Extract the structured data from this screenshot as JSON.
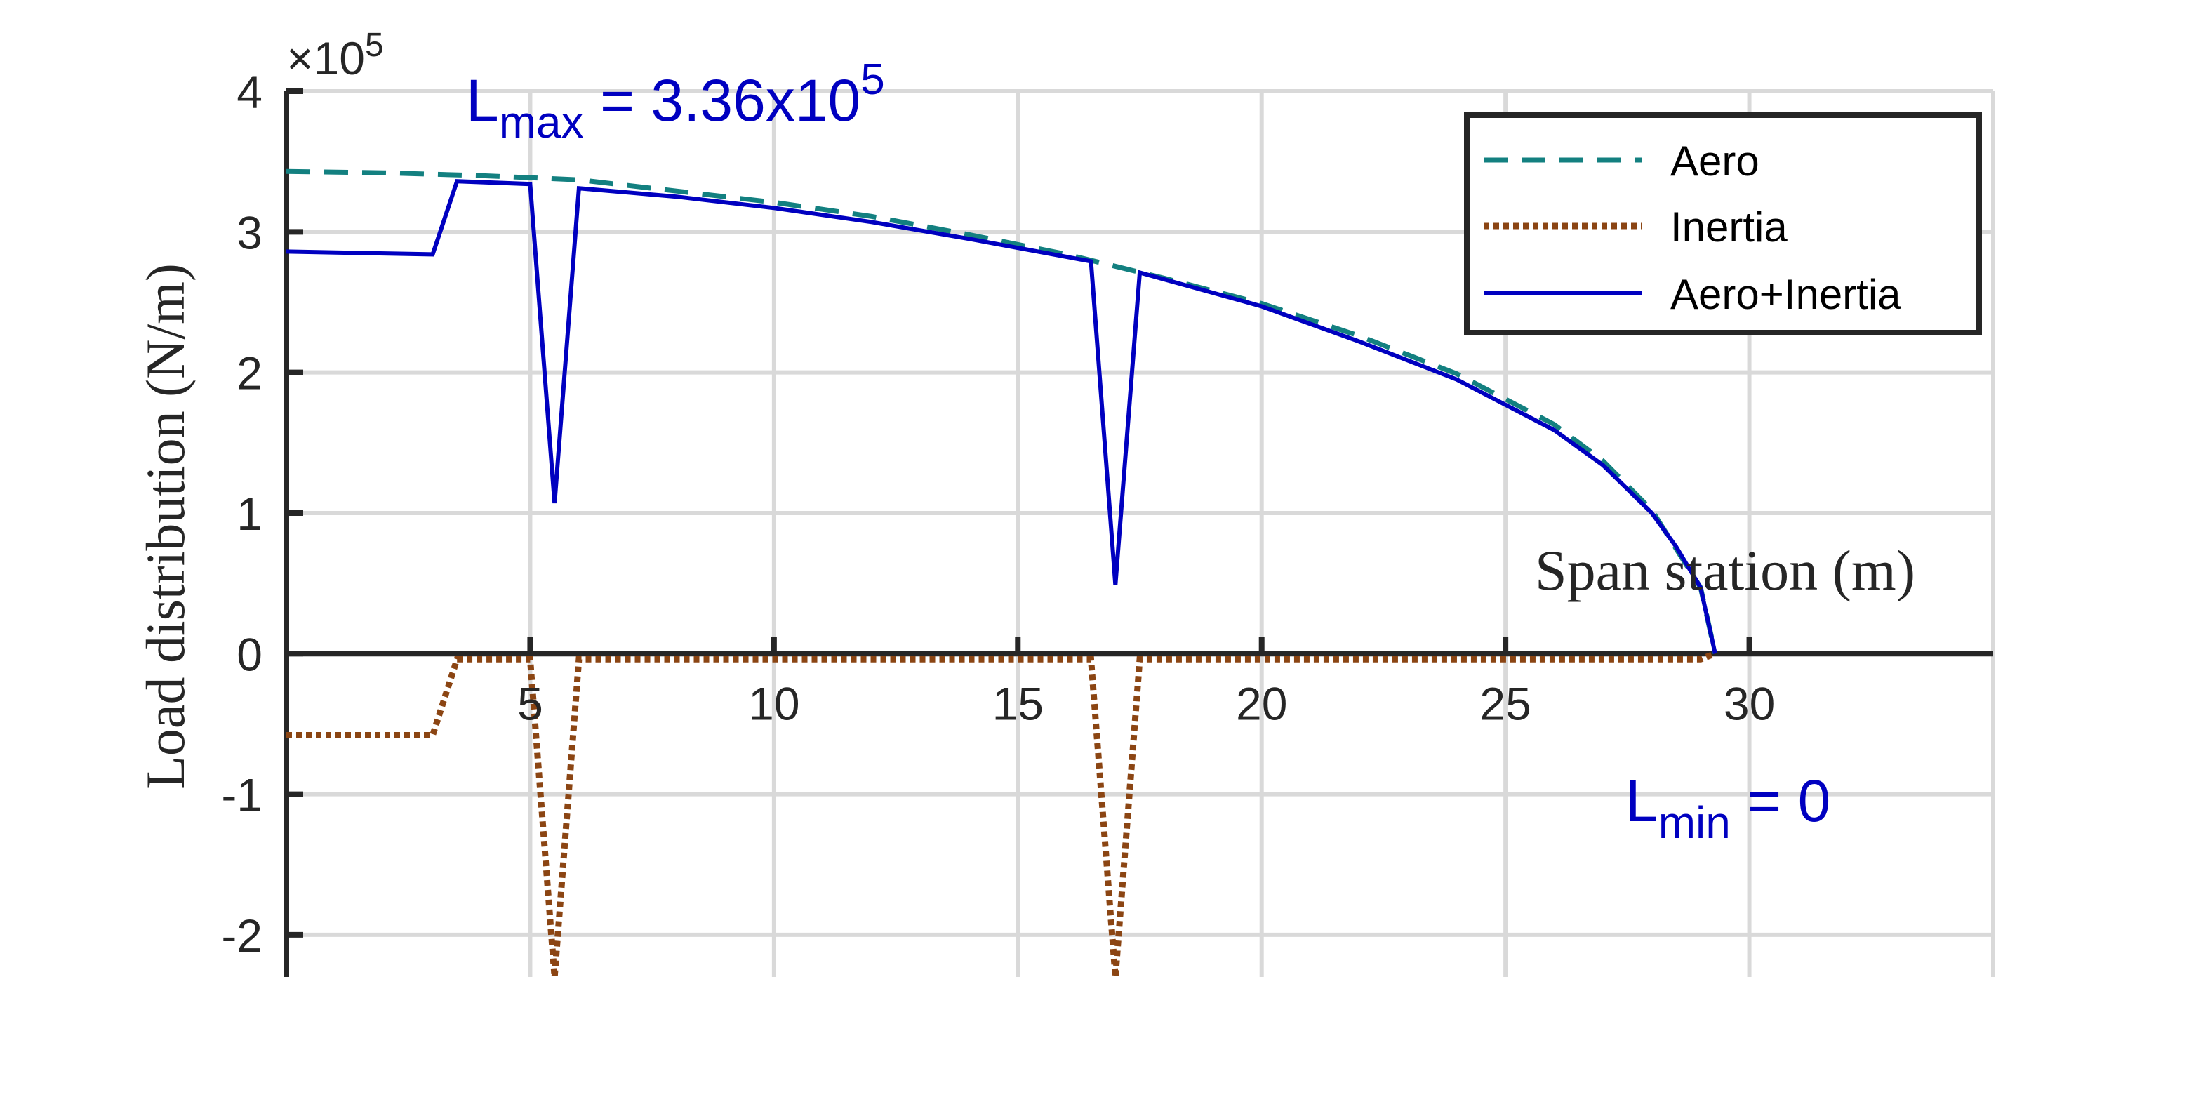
{
  "chart_data": {
    "type": "line",
    "title": "",
    "xlabel": "Span station (m)",
    "ylabel": "Load distribution (N/m)",
    "y_exponent_label": "×10",
    "y_exponent_power": "5",
    "xlim": [
      0,
      35
    ],
    "ylim": [
      -2.3,
      4
    ],
    "x_ticks": [
      5,
      10,
      15,
      20,
      25,
      30
    ],
    "x_tick_labels": [
      "5",
      "10",
      "15",
      "20",
      "25",
      "30"
    ],
    "y_ticks": [
      -2,
      -1,
      0,
      1,
      2,
      3,
      4
    ],
    "y_tick_labels": [
      "-2",
      "-1",
      "0",
      "1",
      "2",
      "3",
      "4"
    ],
    "grid": true,
    "legend_position": "top-right",
    "annotations": {
      "lmax_main": "L",
      "lmax_sub": "max",
      "lmax_value": " = 3.36x10",
      "lmax_sup": "5",
      "lmin_main": "L",
      "lmin_sub": "min",
      "lmin_value": " = 0"
    },
    "colors": {
      "aero": "#138080",
      "inertia": "#8b4513",
      "total": "#0000c0",
      "grid": "#d9d9d9",
      "axis": "#262626"
    },
    "series": [
      {
        "name": "Aero",
        "style": "dashed",
        "x": [
          0,
          2,
          4,
          6,
          8,
          10,
          12,
          14,
          16,
          18,
          20,
          22,
          24,
          26,
          27,
          28,
          29,
          29.3
        ],
        "y": [
          3.43,
          3.42,
          3.4,
          3.37,
          3.29,
          3.21,
          3.11,
          2.98,
          2.84,
          2.67,
          2.49,
          2.26,
          1.99,
          1.63,
          1.37,
          1.02,
          0.47,
          0
        ]
      },
      {
        "name": "Inertia",
        "style": "dotted",
        "x": [
          0,
          3.0,
          3.5,
          5.0,
          5.5,
          6.0,
          16.5,
          17.0,
          17.5,
          29.0,
          29.3
        ],
        "y": [
          -0.58,
          -0.58,
          -0.04,
          -0.04,
          -2.3,
          -0.04,
          -0.04,
          -2.3,
          -0.04,
          -0.04,
          0
        ]
      },
      {
        "name": "Aero+Inertia",
        "style": "solid",
        "x": [
          0,
          3.0,
          3.5,
          5.0,
          5.5,
          6.0,
          8,
          10,
          12,
          14,
          16.5,
          17.0,
          17.5,
          20,
          22,
          24,
          26,
          27,
          28,
          28.5,
          29.0,
          29.3
        ],
        "y": [
          2.86,
          2.84,
          3.36,
          3.34,
          1.07,
          3.31,
          3.25,
          3.17,
          3.07,
          2.95,
          2.79,
          0.49,
          2.71,
          2.47,
          2.22,
          1.95,
          1.59,
          1.34,
          1.0,
          0.76,
          0.47,
          0
        ]
      }
    ]
  }
}
